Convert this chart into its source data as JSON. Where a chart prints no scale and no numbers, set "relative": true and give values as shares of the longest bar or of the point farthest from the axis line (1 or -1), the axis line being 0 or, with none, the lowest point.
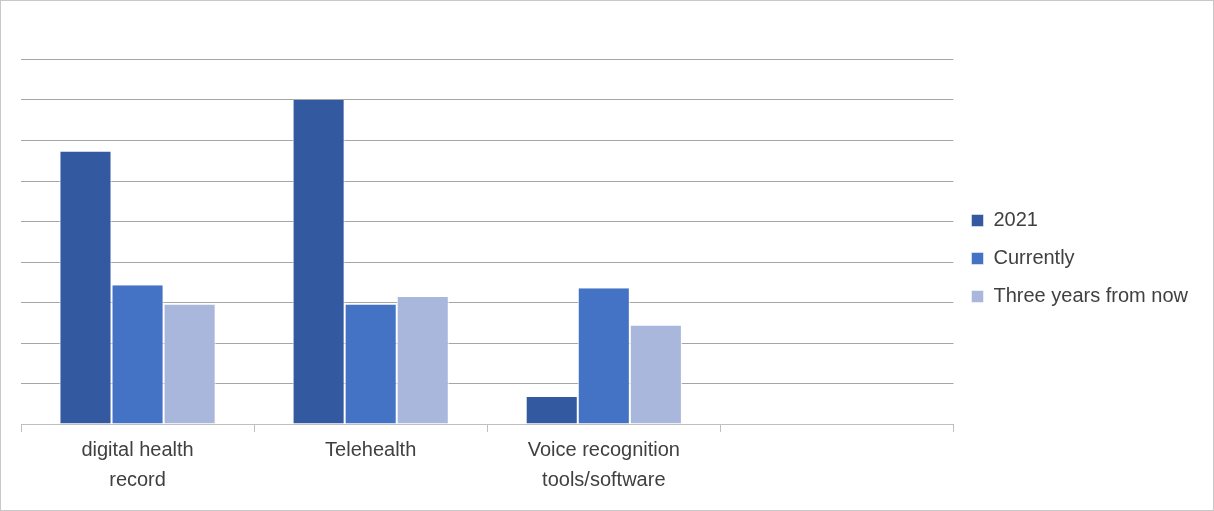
{
  "chart_data": {
    "type": "bar",
    "relative": true,
    "grid": "y",
    "legend": "right",
    "categories": [
      "digital health record",
      "Telehealth",
      "Voice recognition tools/software",
      null
    ],
    "series": [
      {
        "name": "2021",
        "color": "#335aa1",
        "values": [
          0.841,
          1,
          0.083,
          null
        ]
      },
      {
        "name": "Currently",
        "color": "#4472c4",
        "values": [
          0.428,
          0.369,
          0.419,
          null
        ]
      },
      {
        "name": "Three years from now",
        "color": "#a9b7dc",
        "values": [
          0.369,
          0.392,
          0.304,
          null
        ]
      }
    ]
  }
}
